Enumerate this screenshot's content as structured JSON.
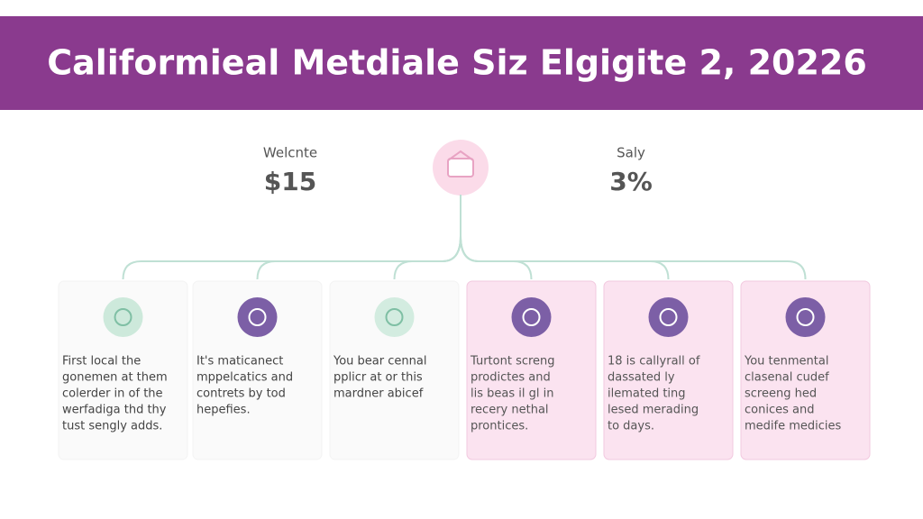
{
  "header": {
    "title": "Califormieal Metdiale Siz Elgigite 2, 20226"
  },
  "stats": [
    {
      "label": "Welcnte",
      "value": "$15"
    },
    {
      "label": "Saly",
      "value": "3%"
    }
  ],
  "cards": [
    {
      "lines": [
        "First local the",
        "gonemen at them",
        "colerder in of the",
        "werfadiga thd thy",
        "tust sengly adds."
      ]
    },
    {
      "lines": [
        "It's maticanect",
        "mppelcatics and",
        "contrets by tod",
        "hepefies."
      ]
    },
    {
      "lines": [
        "You bear cennal",
        "pplicr at or this",
        "mardner abicef"
      ]
    },
    {
      "lines": [
        "Turtont screng",
        "prodictes and",
        "lis beas il gl in",
        "recery nethal",
        "prontices."
      ]
    },
    {
      "lines": [
        "18 is callyrall of",
        "dassated ly",
        "ilemated ting",
        "lesed merading",
        "to days."
      ]
    },
    {
      "lines": [
        "You tenmental",
        "clasenal cudef",
        "screeng hed",
        "conices and",
        "medife medicies"
      ]
    }
  ]
}
